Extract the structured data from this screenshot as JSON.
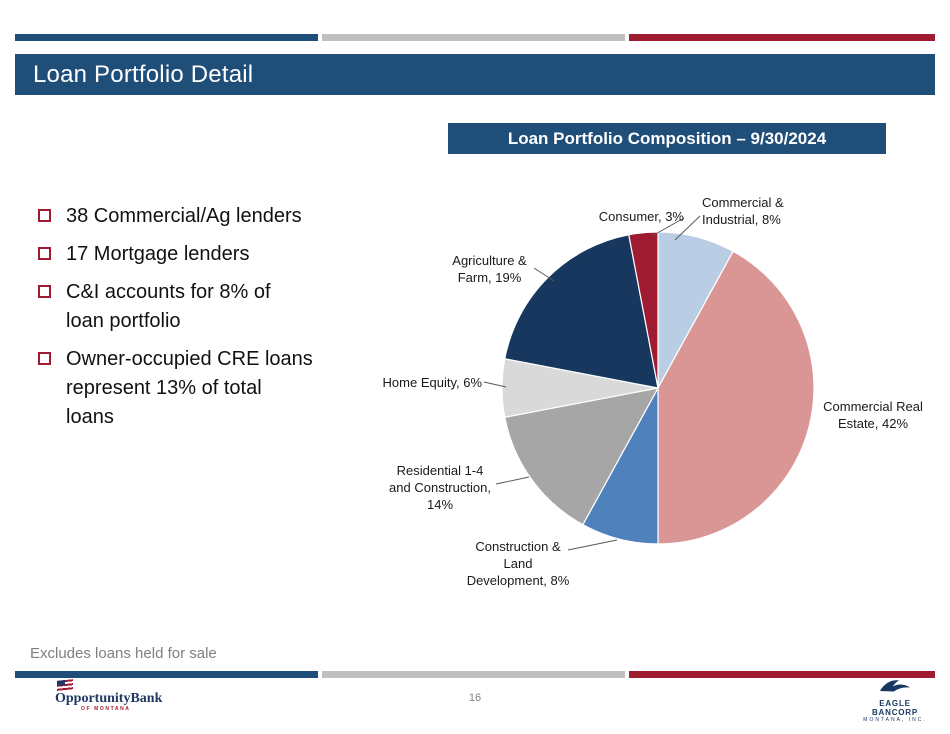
{
  "slide": {
    "title": "Loan Portfolio Detail",
    "footnote": "Excludes loans held for sale",
    "page_number": "16"
  },
  "bullets": {
    "items": [
      "38 Commercial/Ag lenders",
      "17 Mortgage lenders",
      "C&I accounts for 8% of\nloan portfolio",
      "Owner-occupied CRE loans\nrepresent 13% of total\nloans"
    ]
  },
  "chart_header": {
    "title": "Loan Portfolio Composition – 9/30/2024"
  },
  "chart_data": {
    "type": "pie",
    "title": "Loan Portfolio Composition – 9/30/2024",
    "unit": "%",
    "direction": "clockwise",
    "start_angle": "12 o'clock",
    "slices": [
      {
        "label": "Commercial & Industrial",
        "value": 8,
        "color": "#b9cde5"
      },
      {
        "label": "Commercial Real Estate",
        "value": 42,
        "color": "#d99694"
      },
      {
        "label": "Construction & Land Development",
        "value": 8,
        "color": "#4f81bd"
      },
      {
        "label": "Residential 1-4 and Construction",
        "value": 14,
        "color": "#a6a6a6"
      },
      {
        "label": "Home Equity",
        "value": 6,
        "color": "#d9d9d9"
      },
      {
        "label": "Agriculture & Farm",
        "value": 19,
        "color": "#17375e"
      },
      {
        "label": "Consumer",
        "value": 3,
        "color": "#9e1b32"
      }
    ],
    "labels": {
      "commercial_industrial": "Commercial &\nIndustrial, 8%",
      "commercial_real_estate": "Commercial Real\nEstate, 42%",
      "construction_land": "Construction &\nLand\nDevelopment, 8%",
      "residential": "Residential 1-4\nand Construction,\n14%",
      "home_equity": "Home Equity, 6%",
      "agriculture": "Agriculture &\nFarm, 19%",
      "consumer": "Consumer, 3%"
    }
  },
  "branding": {
    "left_logo_line1": "Opportunity",
    "left_logo_line2": "Bank",
    "left_logo_sub": "OF MONTANA",
    "right_logo_line1": "EAGLE BANCORP",
    "right_logo_line2": "MONTANA, INC."
  },
  "colors": {
    "primary_blue": "#1f4e79",
    "accent_red": "#9e1b32",
    "bar_gray": "#bfbfbf"
  }
}
